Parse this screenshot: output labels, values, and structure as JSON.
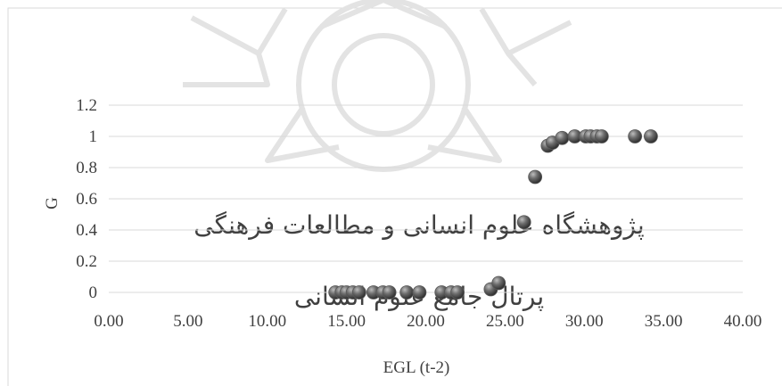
{
  "chart_data": {
    "type": "scatter",
    "xlabel": "EGL (t-2)",
    "ylabel": "G",
    "xlim": [
      0,
      40
    ],
    "ylim": [
      0,
      1.2
    ],
    "x_ticks": [
      "0.00",
      "5.00",
      "10.00",
      "15.00",
      "20.00",
      "25.00",
      "30.00",
      "35.00",
      "40.00"
    ],
    "y_ticks": [
      "0",
      "0.2",
      "0.4",
      "0.6",
      "0.8",
      "1",
      "1.2"
    ],
    "grid": "horizontal",
    "marker_color": "#595959",
    "series": [
      {
        "points": [
          {
            "x": 14.3,
            "y": 0.0
          },
          {
            "x": 14.7,
            "y": 0.0
          },
          {
            "x": 15.0,
            "y": 0.0
          },
          {
            "x": 15.4,
            "y": 0.0
          },
          {
            "x": 15.8,
            "y": 0.0
          },
          {
            "x": 16.7,
            "y": 0.0
          },
          {
            "x": 17.3,
            "y": 0.0
          },
          {
            "x": 17.7,
            "y": 0.0
          },
          {
            "x": 18.8,
            "y": 0.0
          },
          {
            "x": 19.6,
            "y": 0.0
          },
          {
            "x": 21.0,
            "y": 0.0
          },
          {
            "x": 21.6,
            "y": 0.0
          },
          {
            "x": 22.0,
            "y": 0.0
          },
          {
            "x": 24.1,
            "y": 0.02
          },
          {
            "x": 24.6,
            "y": 0.06
          },
          {
            "x": 26.2,
            "y": 0.45
          },
          {
            "x": 26.9,
            "y": 0.74
          },
          {
            "x": 27.7,
            "y": 0.94
          },
          {
            "x": 28.0,
            "y": 0.96
          },
          {
            "x": 28.6,
            "y": 0.99
          },
          {
            "x": 29.4,
            "y": 1.0
          },
          {
            "x": 30.1,
            "y": 1.0
          },
          {
            "x": 30.4,
            "y": 1.0
          },
          {
            "x": 30.8,
            "y": 1.0
          },
          {
            "x": 31.1,
            "y": 1.0
          },
          {
            "x": 33.2,
            "y": 1.0
          },
          {
            "x": 34.2,
            "y": 1.0
          }
        ]
      }
    ]
  },
  "watermark": {
    "line1": "پژوهشگاه علوم انسانی و مطالعات فرهنگی",
    "line2": "پرتال جامع علوم انسانی",
    "color": "#d9d9d9"
  }
}
